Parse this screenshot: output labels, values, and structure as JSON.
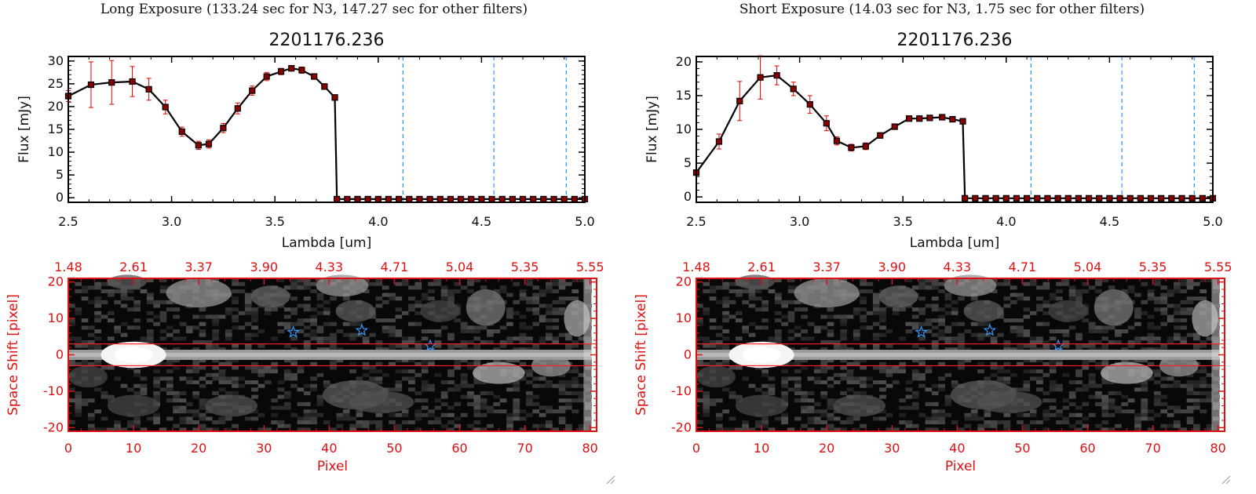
{
  "captions": {
    "left": "Long Exposure (133.24 sec for N3, 147.27 sec for other filters)",
    "right": "Short Exposure (14.03 sec for N3, 1.75 sec for other filters)"
  },
  "colors": {
    "line": "#000000",
    "marker": "#8b0000",
    "error_bar": "#e00000",
    "dashed": "#3399ff",
    "red_axis": "#dd1111",
    "star": "#3399ff"
  },
  "chart_data": [
    {
      "type": "line",
      "title": "2201176.236",
      "xlabel": "Lambda [um]",
      "ylabel": "Flux [mJy]",
      "xlim": [
        2.5,
        5.0
      ],
      "ylim": [
        -1,
        31
      ],
      "xticks": [
        "2.5",
        "3.0",
        "3.5",
        "4.0",
        "4.5",
        "5.0"
      ],
      "yticks": [
        "0",
        "5",
        "10",
        "15",
        "20",
        "25",
        "30"
      ],
      "vlines": [
        4.12,
        4.56,
        4.91
      ],
      "x": [
        2.5,
        2.61,
        2.71,
        2.81,
        2.89,
        2.97,
        3.05,
        3.13,
        3.18,
        3.25,
        3.32,
        3.39,
        3.46,
        3.53,
        3.58,
        3.63,
        3.69,
        3.74,
        3.79,
        3.8,
        3.85,
        3.9,
        3.95,
        4.0,
        4.05,
        4.1,
        4.15,
        4.2,
        4.25,
        4.3,
        4.35,
        4.4,
        4.45,
        4.5,
        4.55,
        4.6,
        4.65,
        4.7,
        4.75,
        4.8,
        4.85,
        4.9,
        4.95,
        5.0
      ],
      "y": [
        22.3,
        24.8,
        25.3,
        25.5,
        23.8,
        19.9,
        14.5,
        11.5,
        11.8,
        15.3,
        19.6,
        23.5,
        26.6,
        27.7,
        28.4,
        28.0,
        26.6,
        24.4,
        22.0,
        -0.3,
        -0.3,
        -0.3,
        -0.3,
        -0.3,
        -0.3,
        -0.3,
        -0.3,
        -0.3,
        -0.3,
        -0.3,
        -0.3,
        -0.3,
        -0.3,
        -0.3,
        -0.3,
        -0.3,
        -0.3,
        -0.3,
        -0.3,
        -0.3,
        -0.3,
        -0.3,
        -0.3,
        -0.3
      ],
      "yerr": [
        1.2,
        5.0,
        4.8,
        3.3,
        2.4,
        1.5,
        1.0,
        0.9,
        0.9,
        1.0,
        1.2,
        1.0,
        0.9,
        0.7,
        0.6,
        0.7,
        0.6,
        0.6,
        0.6,
        0,
        0,
        0,
        0,
        0,
        0,
        0,
        0,
        0,
        0,
        0,
        0,
        0,
        0,
        0,
        0,
        0,
        0,
        0,
        0,
        0,
        0,
        0,
        0,
        0
      ]
    },
    {
      "type": "heatmap",
      "xlabel": "Pixel",
      "ylabel": "Space Shift [pixel]",
      "xlim": [
        0,
        81
      ],
      "ylim": [
        -21,
        21
      ],
      "xticks": [
        "0",
        "10",
        "20",
        "30",
        "40",
        "50",
        "60",
        "70",
        "80"
      ],
      "yticks": [
        "-20",
        "-10",
        "0",
        "10",
        "20"
      ],
      "top_ticks": [
        "1.48",
        "2.61",
        "3.37",
        "3.90",
        "4.33",
        "4.71",
        "5.04",
        "5.35",
        "5.55"
      ],
      "band": [
        -3,
        3
      ],
      "stars": [
        {
          "x": 34.5,
          "y": 6.2
        },
        {
          "x": 45,
          "y": 6.7
        },
        {
          "x": 55.5,
          "y": 2.5
        }
      ]
    },
    {
      "type": "line",
      "title": "2201176.236",
      "xlabel": "Lambda [um]",
      "ylabel": "Flux [mJy]",
      "xlim": [
        2.5,
        5.0
      ],
      "ylim": [
        -0.8,
        20.8
      ],
      "xticks": [
        "2.5",
        "3.0",
        "3.5",
        "4.0",
        "4.5",
        "5.0"
      ],
      "yticks": [
        "0",
        "5",
        "10",
        "15",
        "20"
      ],
      "vlines": [
        4.12,
        4.56,
        4.91
      ],
      "x": [
        2.5,
        2.61,
        2.71,
        2.81,
        2.89,
        2.97,
        3.05,
        3.13,
        3.18,
        3.25,
        3.32,
        3.39,
        3.46,
        3.53,
        3.58,
        3.63,
        3.69,
        3.74,
        3.79,
        3.8,
        3.85,
        3.9,
        3.95,
        4.0,
        4.05,
        4.1,
        4.15,
        4.2,
        4.25,
        4.3,
        4.35,
        4.4,
        4.45,
        4.5,
        4.55,
        4.6,
        4.65,
        4.7,
        4.75,
        4.8,
        4.85,
        4.9,
        4.95,
        5.0
      ],
      "y": [
        3.6,
        8.2,
        14.2,
        17.7,
        18.0,
        16.0,
        13.7,
        10.9,
        8.3,
        7.3,
        7.5,
        9.1,
        10.4,
        11.6,
        11.6,
        11.7,
        11.8,
        11.5,
        11.2,
        -0.2,
        -0.2,
        -0.2,
        -0.2,
        -0.2,
        -0.2,
        -0.2,
        -0.2,
        -0.2,
        -0.2,
        -0.2,
        -0.2,
        -0.2,
        -0.2,
        -0.2,
        -0.2,
        -0.2,
        -0.2,
        -0.2,
        -0.2,
        -0.2,
        -0.2,
        -0.2,
        -0.2,
        -0.2
      ],
      "yerr": [
        0.4,
        1.1,
        2.9,
        3.2,
        1.4,
        1.0,
        1.3,
        1.1,
        0.6,
        0.5,
        0.5,
        0.4,
        0.4,
        0.3,
        0.3,
        0.3,
        0.3,
        0.3,
        0.3,
        0,
        0,
        0,
        0,
        0,
        0,
        0,
        0,
        0,
        0,
        0,
        0,
        0,
        0,
        0,
        0,
        0,
        0,
        0,
        0,
        0,
        0,
        0,
        0,
        0
      ]
    },
    {
      "type": "heatmap",
      "xlabel": "Pixel",
      "ylabel": "Space Shift [pixel]",
      "xlim": [
        0,
        81
      ],
      "ylim": [
        -21,
        21
      ],
      "xticks": [
        "0",
        "10",
        "20",
        "30",
        "40",
        "50",
        "60",
        "70",
        "80"
      ],
      "yticks": [
        "-20",
        "-10",
        "0",
        "10",
        "20"
      ],
      "top_ticks": [
        "1.48",
        "2.61",
        "3.37",
        "3.90",
        "4.33",
        "4.71",
        "5.04",
        "5.35",
        "5.55"
      ],
      "band": [
        -3,
        3
      ],
      "stars": [
        {
          "x": 34.5,
          "y": 6.2
        },
        {
          "x": 45,
          "y": 6.7
        },
        {
          "x": 55.5,
          "y": 2.5
        }
      ]
    }
  ]
}
